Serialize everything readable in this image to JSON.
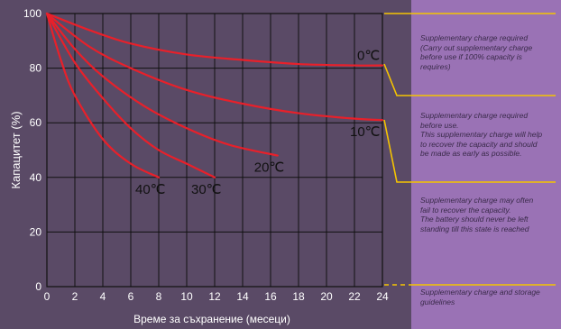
{
  "chart_data": {
    "type": "line",
    "xlabel": "Време за съхранение (месеци)",
    "ylabel": "Капацитет (%)",
    "xlim": [
      0,
      24
    ],
    "ylim": [
      0,
      100
    ],
    "x_ticks": [
      "0",
      "2",
      "4",
      "6",
      "8",
      "10",
      "12",
      "14",
      "16",
      "18",
      "20",
      "22",
      "24"
    ],
    "y_ticks": [
      "0",
      "20",
      "40",
      "60",
      "80",
      "100"
    ],
    "grid": true,
    "series": [
      {
        "name": "0℃",
        "x": [
          0,
          3,
          6,
          10,
          14,
          18,
          22,
          24
        ],
        "y": [
          100,
          94,
          89,
          85,
          83,
          81.5,
          81,
          81
        ]
      },
      {
        "name": "10℃",
        "x": [
          0,
          3,
          6,
          10,
          14,
          18,
          22,
          24
        ],
        "y": [
          100,
          88,
          80,
          72,
          67,
          63.5,
          61.5,
          61
        ]
      },
      {
        "name": "20℃",
        "x": [
          0,
          2,
          4,
          7,
          10,
          13,
          16.5
        ],
        "y": [
          100,
          87,
          77,
          66,
          58,
          52,
          48
        ]
      },
      {
        "name": "30℃",
        "x": [
          0,
          2,
          4,
          6,
          8,
          10,
          12
        ],
        "y": [
          100,
          82,
          69,
          58,
          50,
          45,
          40
        ]
      },
      {
        "name": "40℃",
        "x": [
          0,
          1,
          2,
          4,
          6,
          8
        ],
        "y": [
          100,
          83,
          70,
          54,
          45,
          40
        ]
      }
    ],
    "line_color": "#e8202a"
  },
  "notes": [
    "Supplementary charge required\n(Carry out supplementary charge\nbefore use if 100% capacity is\nrequires)",
    "Supplementary charge required\nbefore use.\nThis supplementary charge will help\nto recover the capacity and should\nbe made  as early as possible.",
    "Supplementary charge may often\nfail to recover the capacity.\nThe battery should never be left\nstanding till this state is reached",
    "Supplementary charge and storage\nguidelines"
  ],
  "colors": {
    "background": "#5a4a66",
    "panel": "#9a72b5",
    "guide": "#f5c400",
    "line": "#e8202a"
  }
}
